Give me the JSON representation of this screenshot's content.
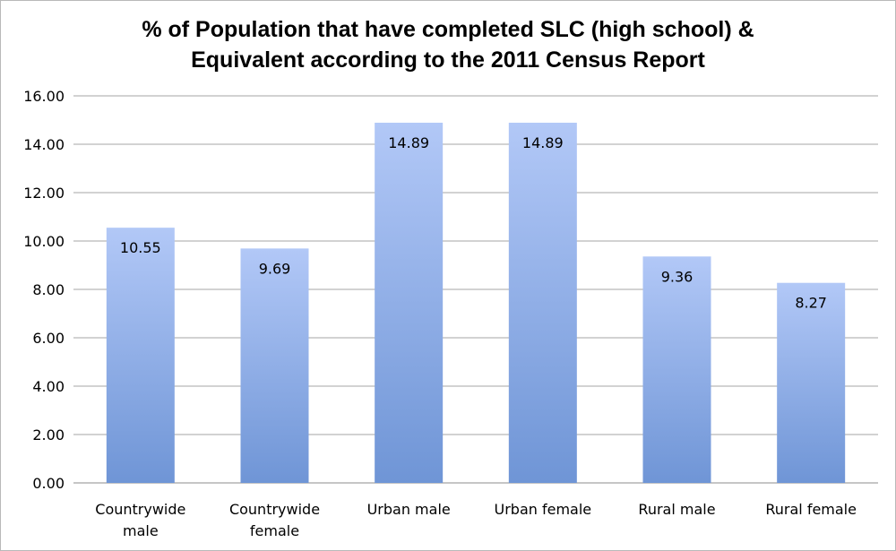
{
  "chart_data": {
    "type": "bar",
    "title_lines": [
      "% of Population that have completed SLC (high school) &",
      "Equivalent according to the 2011 Census Report"
    ],
    "categories": [
      [
        "Countrywide",
        "male"
      ],
      [
        "Countrywide",
        "female"
      ],
      [
        "Urban male"
      ],
      [
        "Urban female"
      ],
      [
        "Rural male"
      ],
      [
        "Rural female"
      ]
    ],
    "values": [
      10.55,
      9.69,
      14.89,
      14.89,
      9.36,
      8.27
    ],
    "data_labels": [
      "10.55",
      "9.69",
      "14.89",
      "14.89",
      "9.36",
      "8.27"
    ],
    "ylim": [
      0,
      16
    ],
    "yticks": [
      "0.00",
      "2.00",
      "4.00",
      "6.00",
      "8.00",
      "10.00",
      "12.00",
      "14.00",
      "16.00"
    ],
    "grid": true,
    "legend": "none",
    "bar_color_top": "#b2c8f7",
    "bar_color_bottom": "#6f95d6"
  }
}
